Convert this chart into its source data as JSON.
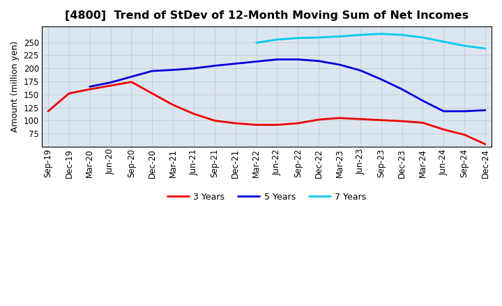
{
  "title": "[4800]  Trend of StDev of 12-Month Moving Sum of Net Incomes",
  "ylabel": "Amount (million yen)",
  "background_color": "#ffffff",
  "plot_bg_color": "#dce6f0",
  "grid_color": "#888888",
  "x_labels": [
    "Sep-19",
    "Dec-19",
    "Mar-20",
    "Jun-20",
    "Sep-20",
    "Dec-20",
    "Mar-21",
    "Jun-21",
    "Sep-21",
    "Dec-21",
    "Mar-22",
    "Jun-22",
    "Sep-22",
    "Dec-22",
    "Mar-23",
    "Jun-23",
    "Sep-23",
    "Dec-23",
    "Mar-24",
    "Jun-24",
    "Sep-24",
    "Dec-24"
  ],
  "series": {
    "3 Years": {
      "color": "#ee0000",
      "values": [
        118,
        152,
        160,
        167,
        174,
        152,
        130,
        113,
        100,
        95,
        92,
        92,
        95,
        102,
        105,
        103,
        101,
        99,
        96,
        83,
        73,
        55
      ]
    },
    "5 Years": {
      "color": "#0000dd",
      "values": [
        null,
        null,
        165,
        173,
        184,
        195,
        197,
        200,
        205,
        209,
        213,
        217,
        217,
        214,
        207,
        196,
        179,
        160,
        138,
        118,
        118,
        120
      ]
    },
    "7 Years": {
      "color": "#00ccee",
      "values": [
        null,
        null,
        null,
        null,
        null,
        null,
        null,
        null,
        null,
        null,
        249,
        255,
        258,
        259,
        261,
        264,
        266,
        264,
        259,
        251,
        243,
        238
      ]
    },
    "10 Years": {
      "color": "#00aa00",
      "values": [
        null,
        null,
        null,
        null,
        null,
        null,
        null,
        null,
        null,
        null,
        null,
        null,
        null,
        null,
        null,
        null,
        null,
        null,
        null,
        null,
        null,
        null
      ]
    }
  },
  "ylim": [
    50,
    280
  ],
  "yticks": [
    75,
    100,
    125,
    150,
    175,
    200,
    225,
    250
  ],
  "title_fontsize": 11.5,
  "tick_fontsize": 8.5,
  "ylabel_fontsize": 9,
  "legend_fontsize": 9
}
